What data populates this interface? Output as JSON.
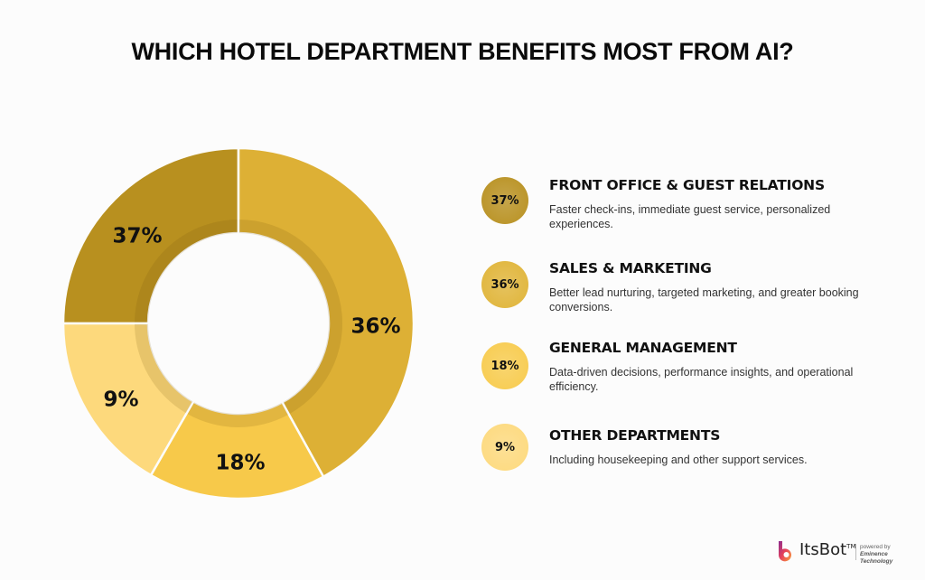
{
  "title": "WHICH HOTEL DEPARTMENT BENEFITS MOST FROM AI?",
  "chart_data": {
    "type": "pie",
    "variant": "donut",
    "title": "WHICH HOTEL DEPARTMENT BENEFITS MOST FROM AI?",
    "categories": [
      "Front Office & Guest Relations",
      "Sales & Marketing",
      "General Management",
      "Other Departments"
    ],
    "values": [
      37,
      36,
      18,
      9
    ],
    "labels": [
      "37%",
      "36%",
      "18%",
      "9%"
    ],
    "colors": [
      "#b8901f",
      "#ddb035",
      "#f7c94a",
      "#fdd97c"
    ],
    "legend": "right"
  },
  "legend": [
    {
      "pct": "37%",
      "title": "FRONT OFFICE & GUEST RELATIONS",
      "desc": "Faster check-ins, immediate guest service, personalized experiences.",
      "color": "#b8901f"
    },
    {
      "pct": "36%",
      "title": "SALES & MARKETING",
      "desc": "Better lead nurturing, targeted marketing, and greater booking conversions.",
      "color": "#e0b437"
    },
    {
      "pct": "18%",
      "title": "GENERAL MANAGEMENT",
      "desc": "Data-driven decisions, performance insights, and operational efficiency.",
      "color": "#f8cb4c"
    },
    {
      "pct": "9%",
      "title": "OTHER DEPARTMENTS",
      "desc": "Including housekeeping and other support services.",
      "color": "#fdd97c"
    }
  ],
  "logo": {
    "name": "ItsBot",
    "tm": "TM",
    "powered": "powered by",
    "company": "Eminence Technology"
  }
}
